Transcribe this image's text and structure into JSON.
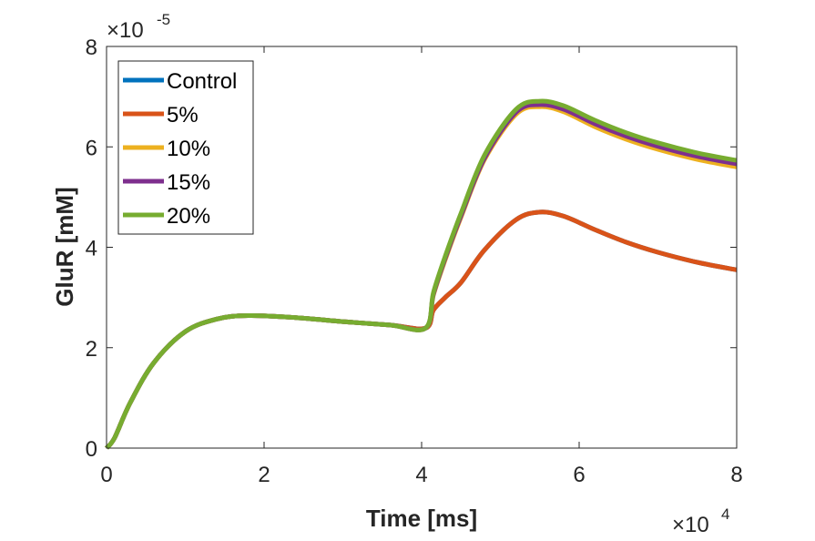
{
  "chart_data": {
    "type": "line",
    "xlabel": "Time [ms]",
    "ylabel": "GluR [mM]",
    "x_exponent_label": "×10",
    "x_exponent": "4",
    "y_exponent_label": "×10",
    "y_exponent": "-5",
    "xlim": [
      0,
      80000
    ],
    "ylim": [
      0,
      8e-05
    ],
    "xticks": [
      0,
      20000,
      40000,
      60000,
      80000
    ],
    "xtick_labels": [
      "0",
      "2",
      "4",
      "6",
      "8"
    ],
    "yticks": [
      0,
      2e-05,
      4e-05,
      6e-05,
      8e-05
    ],
    "ytick_labels": [
      "0",
      "2",
      "4",
      "6",
      "8"
    ],
    "grid": false,
    "legend_position": "top-left",
    "series": [
      {
        "name": "Control",
        "color": "#0072BD",
        "x": [
          0,
          1000,
          3000,
          6000,
          10000,
          14000,
          18000,
          24000,
          30000,
          36000,
          40500,
          41500,
          43000,
          45000,
          48000,
          52000,
          55000,
          58000,
          62000,
          66000,
          70000,
          75000,
          80000
        ],
        "y": [
          0,
          2e-06,
          9e-06,
          1.7e-05,
          2.32e-05,
          2.57e-05,
          2.64e-05,
          2.6e-05,
          2.52e-05,
          2.45e-05,
          2.39e-05,
          2.75e-05,
          3e-05,
          3.3e-05,
          3.95e-05,
          4.55e-05,
          4.7e-05,
          4.62e-05,
          4.35e-05,
          4.1e-05,
          3.9e-05,
          3.7e-05,
          3.55e-05
        ]
      },
      {
        "name": "5%",
        "color": "#D95319",
        "x": [
          0,
          1000,
          3000,
          6000,
          10000,
          14000,
          18000,
          24000,
          30000,
          36000,
          40500,
          41500,
          43000,
          45000,
          48000,
          52000,
          55000,
          58000,
          62000,
          66000,
          70000,
          75000,
          80000
        ],
        "y": [
          0,
          2e-06,
          9e-06,
          1.7e-05,
          2.32e-05,
          2.57e-05,
          2.64e-05,
          2.6e-05,
          2.52e-05,
          2.45e-05,
          2.39e-05,
          2.75e-05,
          3e-05,
          3.3e-05,
          3.95e-05,
          4.55e-05,
          4.7e-05,
          4.62e-05,
          4.35e-05,
          4.1e-05,
          3.9e-05,
          3.7e-05,
          3.55e-05
        ]
      },
      {
        "name": "10%",
        "color": "#EDB120",
        "x": [
          0,
          1000,
          3000,
          6000,
          10000,
          14000,
          18000,
          24000,
          30000,
          36000,
          40500,
          41500,
          43000,
          45000,
          48000,
          52000,
          55000,
          58000,
          62000,
          66000,
          70000,
          75000,
          80000
        ],
        "y": [
          0,
          2e-06,
          9e-06,
          1.7e-05,
          2.32e-05,
          2.57e-05,
          2.64e-05,
          2.6e-05,
          2.52e-05,
          2.45e-05,
          2.39e-05,
          3.05e-05,
          3.75e-05,
          4.6e-05,
          5.75e-05,
          6.65e-05,
          6.8e-05,
          6.7e-05,
          6.4e-05,
          6.15e-05,
          5.95e-05,
          5.75e-05,
          5.6e-05
        ]
      },
      {
        "name": "15%",
        "color": "#7E2F8E",
        "x": [
          0,
          1000,
          3000,
          6000,
          10000,
          14000,
          18000,
          24000,
          30000,
          36000,
          40500,
          41500,
          43000,
          45000,
          48000,
          52000,
          55000,
          58000,
          62000,
          66000,
          70000,
          75000,
          80000
        ],
        "y": [
          0,
          2e-06,
          9e-06,
          1.7e-05,
          2.32e-05,
          2.57e-05,
          2.64e-05,
          2.6e-05,
          2.52e-05,
          2.45e-05,
          2.39e-05,
          3.07e-05,
          3.78e-05,
          4.63e-05,
          5.78e-05,
          6.69e-05,
          6.84e-05,
          6.75e-05,
          6.46e-05,
          6.21e-05,
          6.01e-05,
          5.81e-05,
          5.66e-05
        ]
      },
      {
        "name": "20%",
        "color": "#77AC30",
        "x": [
          0,
          1000,
          3000,
          6000,
          10000,
          14000,
          18000,
          24000,
          30000,
          36000,
          40500,
          41500,
          43000,
          45000,
          48000,
          52000,
          55000,
          58000,
          62000,
          66000,
          70000,
          75000,
          80000
        ],
        "y": [
          0,
          2e-06,
          9e-06,
          1.7e-05,
          2.32e-05,
          2.57e-05,
          2.64e-05,
          2.6e-05,
          2.52e-05,
          2.45e-05,
          2.39e-05,
          3.1e-05,
          3.82e-05,
          4.68e-05,
          5.84e-05,
          6.75e-05,
          6.91e-05,
          6.82e-05,
          6.53e-05,
          6.28e-05,
          6.08e-05,
          5.88e-05,
          5.73e-05
        ]
      }
    ]
  }
}
